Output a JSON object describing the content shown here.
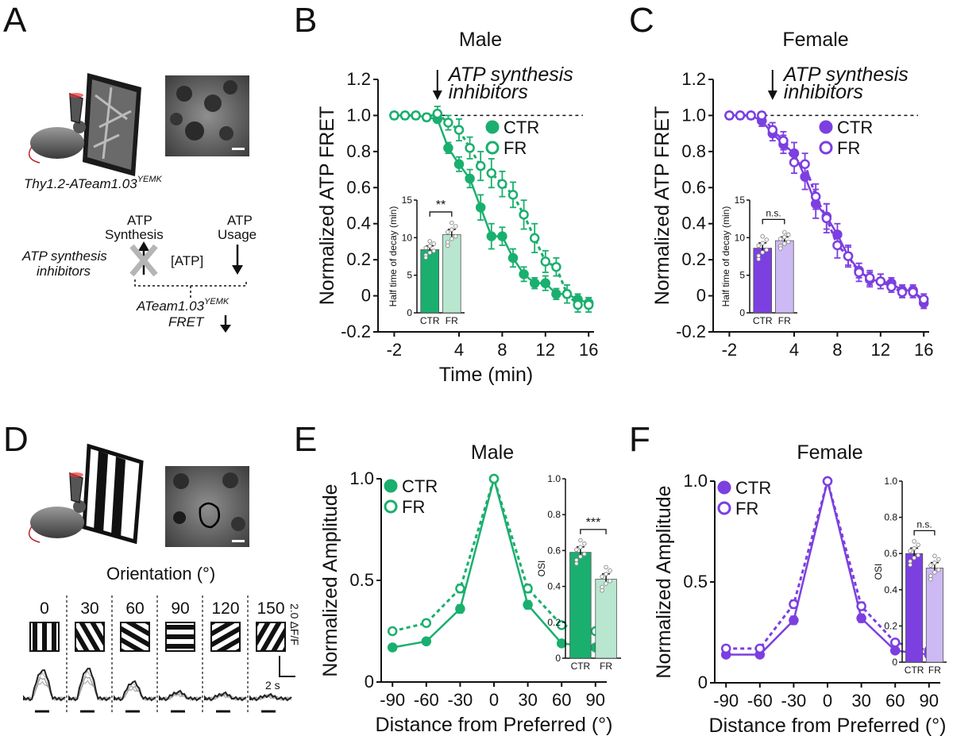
{
  "colors": {
    "green": "#1aaf6e",
    "green_light": "#b8e6cf",
    "purple": "#7c3fe0",
    "purple_light": "#cdb9f3",
    "gray": "#8a8a8a"
  },
  "panel_a": {
    "letter": "A",
    "genotype": "Thy1.2-ATeam1.03",
    "genotype_sup": "YEMK",
    "atp_synthesis": "ATP",
    "synthesis_word": "Synthesis",
    "atp_usage": "ATP",
    "usage_word": "Usage",
    "inhibitors_line1": "ATP synthesis",
    "inhibitors_line2": "inhibitors",
    "atp_pool": "[ATP]",
    "sensor_name": "ATeam1.03",
    "sensor_sup": "YEMK",
    "fret_label": "FRET"
  },
  "panel_d": {
    "letter": "D",
    "orientation_title": "Orientation (°)",
    "orientations": [
      "0",
      "30",
      "60",
      "90",
      "120",
      "150"
    ],
    "scale_dff": "2.0 ΔF/F",
    "scale_time": "2 s"
  },
  "chart_data": [
    {
      "panel": "B",
      "type": "line",
      "title": "Male",
      "xlabel": "Time (min)",
      "ylabel": "Normalized ATP FRET",
      "xlim": [
        -3.5,
        16.5
      ],
      "ylim": [
        -0.2,
        1.2
      ],
      "xticks": [
        "-2",
        "4",
        "8",
        "12",
        "16"
      ],
      "xtick_values": [
        -2,
        4,
        8,
        12,
        16
      ],
      "yticks": [
        "-0.2",
        "0",
        "0.2",
        "0.4",
        "0.6",
        "0.8",
        "1.0",
        "1.2"
      ],
      "ytick_values": [
        -0.2,
        0,
        0.2,
        0.4,
        0.6,
        0.8,
        1.0,
        1.2
      ],
      "reference_line": 1.0,
      "annotation_line1": "ATP synthesis",
      "annotation_line2": "inhibitors",
      "annotation_x": 2,
      "x": [
        -2,
        -1,
        0,
        1,
        2,
        3,
        4,
        5,
        6,
        7,
        8,
        9,
        10,
        11,
        12,
        13,
        14,
        15,
        16
      ],
      "series": [
        {
          "name": "CTR",
          "style": "solid-filled",
          "values": [
            1.0,
            1.0,
            1.0,
            0.99,
            0.98,
            0.82,
            0.73,
            0.65,
            0.49,
            0.33,
            0.33,
            0.21,
            0.12,
            0.07,
            0.07,
            0.01,
            0.01,
            -0.02,
            -0.04
          ],
          "errors": [
            0.02,
            0.02,
            0.02,
            0.02,
            0.02,
            0.03,
            0.04,
            0.05,
            0.07,
            0.07,
            0.05,
            0.05,
            0.04,
            0.03,
            0.04,
            0.03,
            0.02,
            0.03,
            0.03
          ]
        },
        {
          "name": "FR",
          "style": "dashed-open",
          "values": [
            1.0,
            1.0,
            1.0,
            0.99,
            1.01,
            0.96,
            0.92,
            0.82,
            0.72,
            0.68,
            0.62,
            0.56,
            0.45,
            0.32,
            0.19,
            0.16,
            0.01,
            -0.05,
            -0.05
          ],
          "errors": [
            0.02,
            0.02,
            0.02,
            0.02,
            0.04,
            0.04,
            0.06,
            0.06,
            0.08,
            0.08,
            0.07,
            0.07,
            0.08,
            0.08,
            0.06,
            0.05,
            0.05,
            0.04,
            0.04
          ]
        }
      ],
      "inset": {
        "type": "bar",
        "ylabel": "Half time of decay (min)",
        "categories": [
          "CTR",
          "FR"
        ],
        "values": [
          8.4,
          10.4
        ],
        "errors": [
          0.5,
          0.7
        ],
        "ylim": [
          0,
          15
        ],
        "yticks": [
          "0",
          "5",
          "10",
          "15"
        ],
        "ytick_values": [
          0,
          5,
          10,
          15
        ],
        "significance": "**"
      }
    },
    {
      "panel": "C",
      "type": "line",
      "title": "Female",
      "xlabel": "",
      "ylabel": "Normalized ATP FRET",
      "xlim": [
        -3.5,
        16.5
      ],
      "ylim": [
        -0.2,
        1.2
      ],
      "xticks": [
        "-2",
        "4",
        "8",
        "12",
        "16"
      ],
      "xtick_values": [
        -2,
        4,
        8,
        12,
        16
      ],
      "yticks": [
        "-0.2",
        "0",
        "0.2",
        "0.4",
        "0.6",
        "0.8",
        "1.0",
        "1.2"
      ],
      "ytick_values": [
        -0.2,
        0,
        0.2,
        0.4,
        0.6,
        0.8,
        1.0,
        1.2
      ],
      "reference_line": 1.0,
      "annotation_line1": "ATP synthesis",
      "annotation_line2": "inhibitors",
      "annotation_x": 2,
      "x": [
        -2,
        -1,
        0,
        1,
        2,
        3,
        4,
        5,
        6,
        7,
        8,
        9,
        10,
        11,
        12,
        13,
        14,
        15,
        16
      ],
      "series": [
        {
          "name": "CTR",
          "style": "solid-filled",
          "values": [
            1.0,
            1.0,
            1.0,
            0.97,
            0.9,
            0.84,
            0.79,
            0.66,
            0.51,
            0.44,
            0.34,
            0.22,
            0.14,
            0.09,
            0.08,
            0.07,
            0.03,
            0.03,
            -0.04
          ],
          "errors": [
            0.02,
            0.02,
            0.02,
            0.03,
            0.04,
            0.05,
            0.06,
            0.07,
            0.08,
            0.07,
            0.06,
            0.05,
            0.04,
            0.04,
            0.04,
            0.03,
            0.03,
            0.03,
            0.03
          ]
        },
        {
          "name": "FR",
          "style": "dashed-open",
          "values": [
            1.0,
            1.0,
            1.0,
            1.0,
            0.92,
            0.86,
            0.74,
            0.73,
            0.55,
            0.43,
            0.28,
            0.22,
            0.13,
            0.1,
            0.08,
            0.05,
            0.02,
            0.02,
            -0.02
          ],
          "errors": [
            0.02,
            0.02,
            0.02,
            0.02,
            0.04,
            0.05,
            0.06,
            0.06,
            0.07,
            0.08,
            0.07,
            0.06,
            0.05,
            0.04,
            0.04,
            0.03,
            0.03,
            0.03,
            0.03
          ]
        }
      ],
      "inset": {
        "type": "bar",
        "ylabel": "Half time of decay (min)",
        "categories": [
          "CTR",
          "FR"
        ],
        "values": [
          8.6,
          9.6
        ],
        "errors": [
          0.7,
          0.5
        ],
        "ylim": [
          0,
          15
        ],
        "yticks": [
          "0",
          "5",
          "10",
          "15"
        ],
        "ytick_values": [
          0,
          5,
          10,
          15
        ],
        "significance": "n.s."
      }
    },
    {
      "panel": "E",
      "type": "line",
      "title": "Male",
      "xlabel": "Distance from Preferred (°)",
      "ylabel": "Normalized Amplitude",
      "xlim": [
        -100,
        100
      ],
      "ylim": [
        0,
        1.0
      ],
      "xticks": [
        "-90",
        "-60",
        "-30",
        "0",
        "30",
        "60",
        "90"
      ],
      "xtick_values": [
        -90,
        -60,
        -30,
        0,
        30,
        60,
        90
      ],
      "yticks": [
        "0",
        "0.5",
        "1.0"
      ],
      "ytick_values": [
        0,
        0.5,
        1.0
      ],
      "x": [
        -90,
        -60,
        -30,
        0,
        30,
        60,
        90
      ],
      "series": [
        {
          "name": "CTR",
          "style": "solid-filled",
          "values": [
            0.17,
            0.2,
            0.36,
            1.0,
            0.38,
            0.19,
            0.17
          ],
          "errors": [
            0.015,
            0.015,
            0.02,
            0.0,
            0.02,
            0.015,
            0.015
          ]
        },
        {
          "name": "FR",
          "style": "dashed-open",
          "values": [
            0.25,
            0.29,
            0.46,
            1.0,
            0.46,
            0.28,
            0.25
          ],
          "errors": [
            0.015,
            0.015,
            0.02,
            0.0,
            0.02,
            0.015,
            0.015
          ]
        }
      ],
      "inset": {
        "type": "bar",
        "ylabel": "OSI",
        "categories": [
          "CTR",
          "FR"
        ],
        "values": [
          0.59,
          0.44
        ],
        "errors": [
          0.03,
          0.03
        ],
        "ylim": [
          0,
          1.0
        ],
        "yticks": [
          "0",
          "0.2",
          "0.4",
          "0.6",
          "0.8",
          "1.0"
        ],
        "ytick_values": [
          0,
          0.2,
          0.4,
          0.6,
          0.8,
          1.0
        ],
        "significance": "***"
      }
    },
    {
      "panel": "F",
      "type": "line",
      "title": "Female",
      "xlabel": "Distance from Preferred (°)",
      "ylabel": "Normalized Amplitude",
      "xlim": [
        -100,
        100
      ],
      "ylim": [
        0,
        1.0
      ],
      "xticks": [
        "-90",
        "-60",
        "-30",
        "0",
        "30",
        "60",
        "90"
      ],
      "xtick_values": [
        -90,
        -60,
        -30,
        0,
        30,
        60,
        90
      ],
      "yticks": [
        "0",
        "0.5",
        "1.0"
      ],
      "ytick_values": [
        0,
        0.5,
        1.0
      ],
      "x": [
        -90,
        -60,
        -30,
        0,
        30,
        60,
        90
      ],
      "series": [
        {
          "name": "CTR",
          "style": "solid-filled",
          "values": [
            0.14,
            0.14,
            0.31,
            1.0,
            0.32,
            0.16,
            0.14
          ],
          "errors": [
            0.015,
            0.015,
            0.02,
            0.0,
            0.02,
            0.015,
            0.015
          ]
        },
        {
          "name": "FR",
          "style": "dashed-open",
          "values": [
            0.17,
            0.17,
            0.39,
            1.0,
            0.38,
            0.2,
            0.16
          ],
          "errors": [
            0.015,
            0.015,
            0.02,
            0.0,
            0.02,
            0.015,
            0.015
          ]
        }
      ],
      "inset": {
        "type": "bar",
        "ylabel": "OSI",
        "categories": [
          "CTR",
          "FR"
        ],
        "values": [
          0.6,
          0.52
        ],
        "errors": [
          0.03,
          0.03
        ],
        "ylim": [
          0,
          1.0
        ],
        "yticks": [
          "0",
          "0.2",
          "0.4",
          "0.6",
          "0.8",
          "1.0"
        ],
        "ytick_values": [
          0,
          0.2,
          0.4,
          0.6,
          0.8,
          1.0
        ],
        "significance": "n.s."
      }
    }
  ]
}
